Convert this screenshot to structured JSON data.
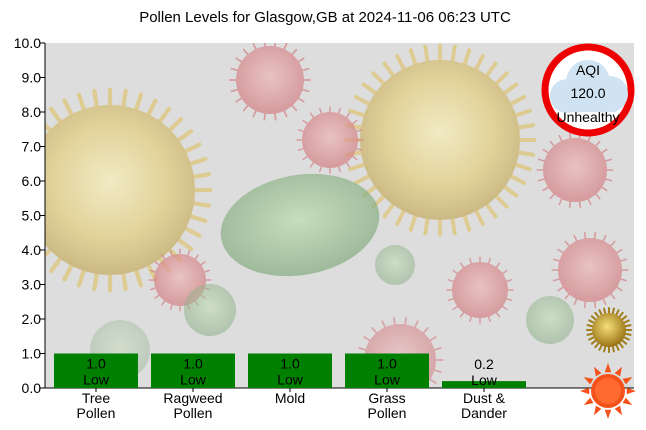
{
  "chart_data": {
    "type": "bar",
    "title": "Pollen Levels for Glasgow,GB at 2024-11-06 06:23 UTC",
    "categories": [
      [
        "Tree",
        "Pollen"
      ],
      [
        "Ragweed",
        "Pollen"
      ],
      [
        "Mold"
      ],
      [
        "Grass",
        "Pollen"
      ],
      [
        "Dust &",
        "Dander"
      ]
    ],
    "values": [
      1.0,
      1.0,
      1.0,
      1.0,
      0.2
    ],
    "value_labels": [
      "1.0",
      "1.0",
      "1.0",
      "1.0",
      "0.2"
    ],
    "level_labels": [
      "Low",
      "Low",
      "Low",
      "Low",
      "Low"
    ],
    "ylim": [
      0,
      10
    ],
    "yticks": [
      "0.0",
      "1.0",
      "2.0",
      "3.0",
      "4.0",
      "5.0",
      "6.0",
      "7.0",
      "8.0",
      "9.0",
      "10.0"
    ],
    "grid": false,
    "colors": {
      "bar": "#008000",
      "plot_background": "#d9d9d9",
      "pollen_yellow": "#e3c65a",
      "pollen_red": "#d46a6a",
      "pollen_green": "#5f9a5a",
      "aqi_ring": "#ee0000",
      "aqi_cloud": "#cfe3f2",
      "sun": "#f4521b"
    }
  },
  "aqi_badge": {
    "label": "AQI",
    "value": "120.0",
    "category": "Unhealthy",
    "icon": "cloud-icon"
  },
  "side_icons": [
    "pollen-grain-icon",
    "sun-icon"
  ]
}
